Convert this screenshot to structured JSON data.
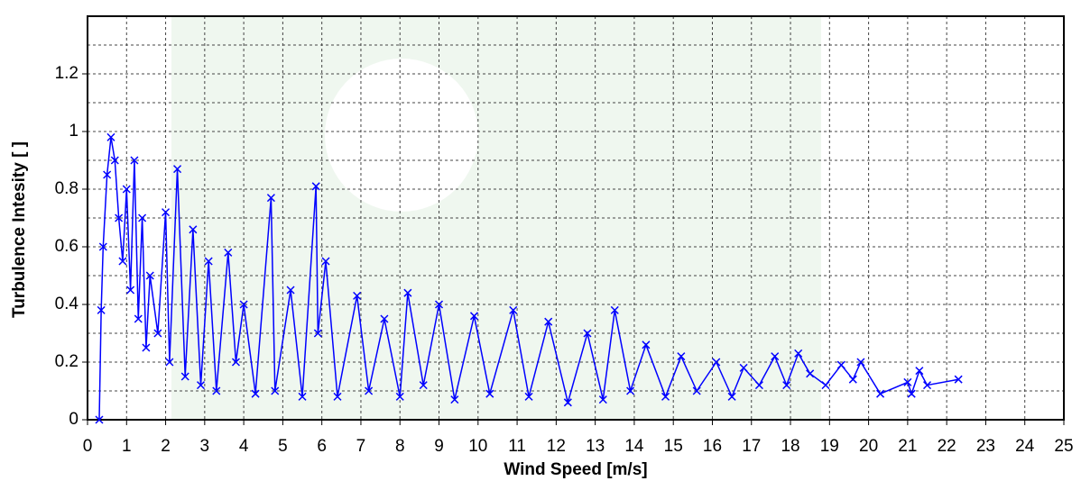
{
  "chart_data": {
    "type": "line",
    "marker": "x",
    "x_label": "Wind Speed [m/s]",
    "y_label": "Turbulence Intesity [ ]",
    "xlim": [
      0,
      25
    ],
    "xticks": [
      0,
      1,
      2,
      3,
      4,
      5,
      6,
      7,
      8,
      9,
      10,
      11,
      12,
      13,
      14,
      15,
      16,
      17,
      18,
      19,
      20,
      21,
      22,
      23,
      24,
      25
    ],
    "ylim": [
      0,
      1.4
    ],
    "yticks": [
      0,
      0.2,
      0.4,
      0.6,
      0.8,
      1,
      1.2
    ],
    "y_minor_grid": [
      0.1,
      0.3,
      0.5,
      0.7,
      0.9,
      1.1,
      1.3
    ],
    "grid": true,
    "series": [
      {
        "color": "#0000ff",
        "x": [
          0.3,
          0.35,
          0.4,
          0.5,
          0.6,
          0.7,
          0.8,
          0.9,
          1.0,
          1.1,
          1.2,
          1.3,
          1.4,
          1.5,
          1.6,
          1.8,
          2.0,
          2.1,
          2.3,
          2.5,
          2.7,
          2.9,
          3.1,
          3.3,
          3.6,
          3.8,
          4.0,
          4.3,
          4.7,
          4.8,
          5.2,
          5.5,
          5.85,
          5.9,
          6.1,
          6.4,
          6.9,
          7.2,
          7.6,
          8.0,
          8.2,
          8.6,
          9.0,
          9.4,
          9.9,
          10.3,
          10.9,
          11.3,
          11.8,
          12.3,
          12.8,
          13.2,
          13.5,
          13.9,
          14.3,
          14.8,
          15.2,
          15.6,
          16.1,
          16.5,
          16.8,
          17.2,
          17.6,
          17.9,
          18.2,
          18.5,
          18.9,
          19.3,
          19.6,
          19.8,
          20.3,
          21.0,
          21.1,
          21.3,
          21.5,
          22.3
        ],
        "values": [
          0.0,
          0.38,
          0.6,
          0.85,
          0.98,
          0.9,
          0.7,
          0.55,
          0.8,
          0.45,
          0.9,
          0.35,
          0.7,
          0.25,
          0.5,
          0.3,
          0.72,
          0.2,
          0.87,
          0.15,
          0.66,
          0.12,
          0.55,
          0.1,
          0.58,
          0.2,
          0.4,
          0.09,
          0.77,
          0.1,
          0.45,
          0.08,
          0.81,
          0.3,
          0.55,
          0.08,
          0.43,
          0.1,
          0.35,
          0.08,
          0.44,
          0.12,
          0.4,
          0.07,
          0.36,
          0.09,
          0.38,
          0.08,
          0.34,
          0.06,
          0.3,
          0.07,
          0.38,
          0.1,
          0.26,
          0.08,
          0.22,
          0.1,
          0.2,
          0.08,
          0.18,
          0.12,
          0.22,
          0.12,
          0.23,
          0.16,
          0.12,
          0.19,
          0.14,
          0.2,
          0.09,
          0.13,
          0.09,
          0.17,
          0.12,
          0.14
        ]
      }
    ]
  }
}
